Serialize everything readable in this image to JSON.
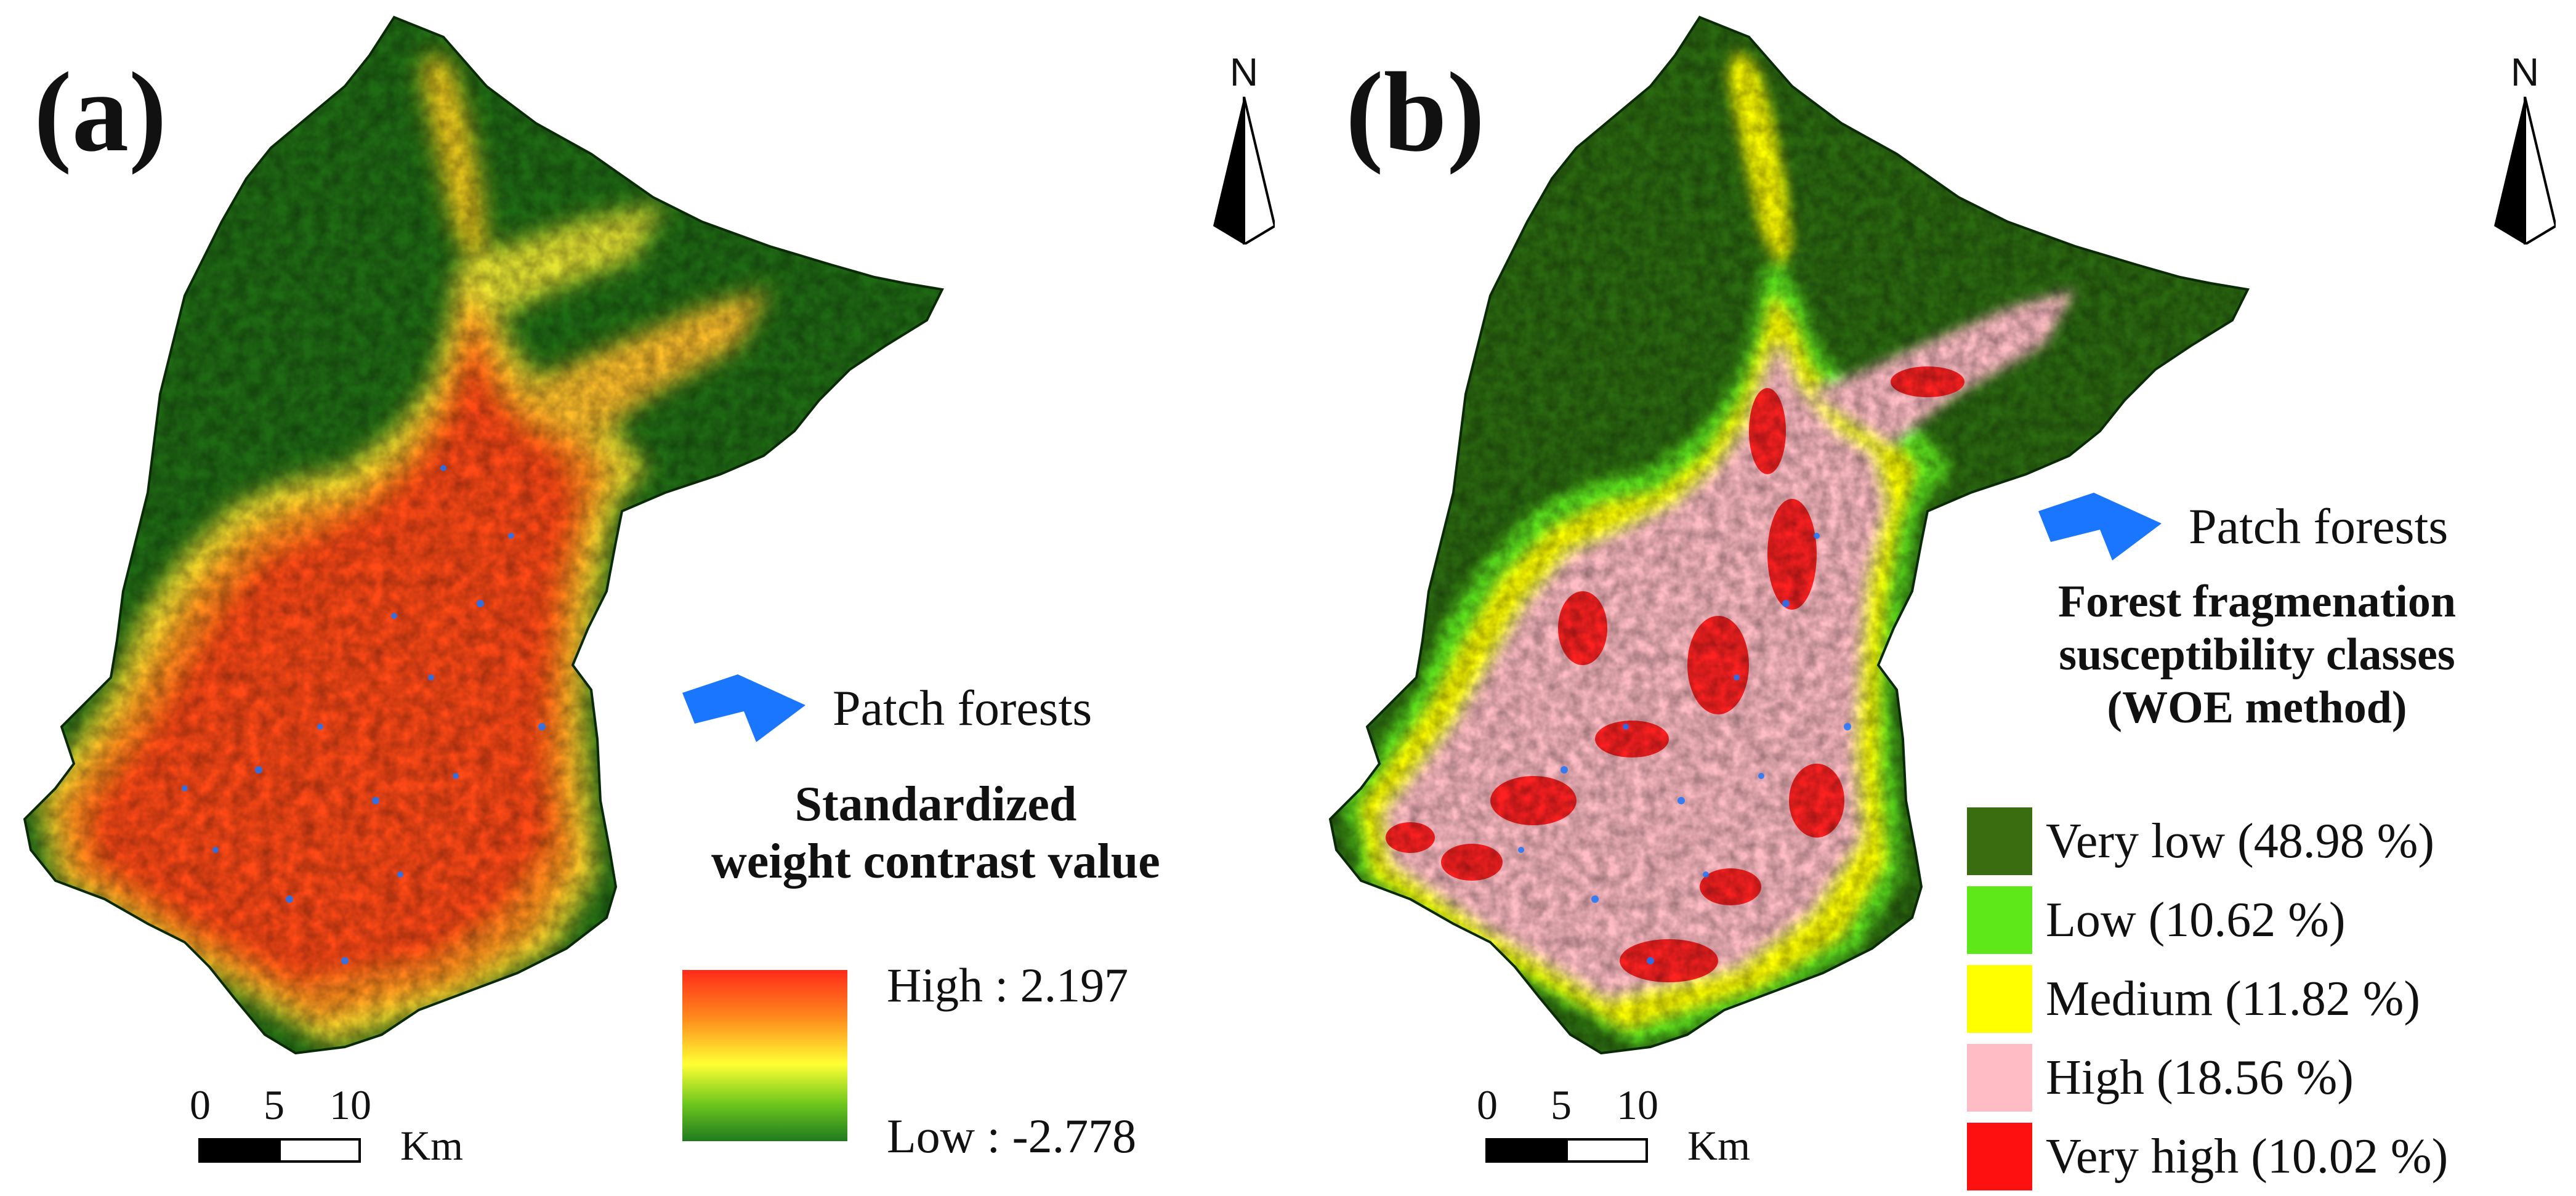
{
  "panels": {
    "a": {
      "label": "(a)",
      "north_label": "N",
      "patch_forests_label": "Patch forests",
      "legend_title_lines": [
        "Standardized",
        "weight contrast value"
      ],
      "ramp_high_label": "High : 2.197",
      "ramp_low_label": "Low : -2.778",
      "scale_ticks": [
        "0",
        "5",
        "10"
      ],
      "scale_unit": "Km"
    },
    "b": {
      "label": "(b)",
      "north_label": "N",
      "patch_forests_label": "Patch forests",
      "legend_title_lines": [
        "Forest fragmenation",
        "susceptibility classes",
        "(WOE method)"
      ],
      "classes": [
        {
          "label": "Very low (48.98 %)",
          "color": "#3a6d0f",
          "share": 48.98
        },
        {
          "label": "Low (10.62 %)",
          "color": "#5ee81a",
          "share": 10.62
        },
        {
          "label": "Medium (11.82 %)",
          "color": "#ffff00",
          "share": 11.82
        },
        {
          "label": "High (18.56 %)",
          "color": "#ffbcc4",
          "share": 18.56
        },
        {
          "label": "Very high (10.02 %)",
          "color": "#ff1010",
          "share": 10.02
        }
      ],
      "scale_ticks": [
        "0",
        "5",
        "10"
      ],
      "scale_unit": "Km"
    }
  },
  "colors": {
    "patch_forest": "#1a75ff",
    "forest_dark": "#1f6b14",
    "ramp_high": "#ff2a1a",
    "ramp_mid": "#ffff33",
    "ramp_low": "#1f7a1f"
  }
}
